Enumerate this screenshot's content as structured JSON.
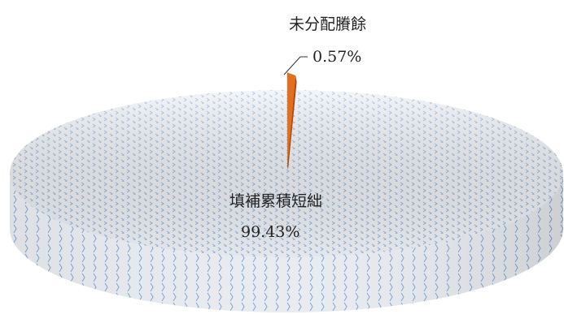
{
  "chart_data": {
    "type": "pie",
    "style": "3d",
    "title": "",
    "categories": [
      "未分配賸餘",
      "填補累積短絀"
    ],
    "values": [
      0.57,
      99.43
    ],
    "labels": [
      "0.57%",
      "99.43%"
    ],
    "colors": [
      "#E36F1E",
      "#9DB9DD"
    ],
    "legend": "none",
    "data_labels": "category-and-percent"
  }
}
